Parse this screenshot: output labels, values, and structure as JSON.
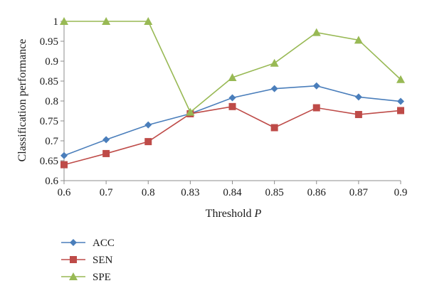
{
  "chart_data": {
    "type": "line",
    "categories": [
      "0.6",
      "0.7",
      "0.8",
      "0.83",
      "0.84",
      "0.85",
      "0.86",
      "0.87",
      "0.9"
    ],
    "series": [
      {
        "name": "ACC",
        "values": [
          0.663,
          0.703,
          0.74,
          0.768,
          0.808,
          0.831,
          0.838,
          0.81,
          0.799
        ],
        "color": "#4a7ebb",
        "marker": "diamond"
      },
      {
        "name": "SEN",
        "values": [
          0.64,
          0.668,
          0.698,
          0.768,
          0.786,
          0.733,
          0.783,
          0.766,
          0.776
        ],
        "color": "#be4b48",
        "marker": "square"
      },
      {
        "name": "SPE",
        "values": [
          1.0,
          1.0,
          1.0,
          0.772,
          0.859,
          0.895,
          0.972,
          0.953,
          0.854
        ],
        "color": "#98b954",
        "marker": "triangle"
      }
    ],
    "xlabel": "Threshold",
    "xlabel_var": "P",
    "ylabel": "Classification performance",
    "ylim": [
      0.6,
      1.0
    ],
    "yticks": [
      "0.6",
      "0.65",
      "0.7",
      "0.75",
      "0.8",
      "0.85",
      "0.9",
      "0.95",
      "1"
    ],
    "grid": false,
    "legend": "bottom-left"
  }
}
